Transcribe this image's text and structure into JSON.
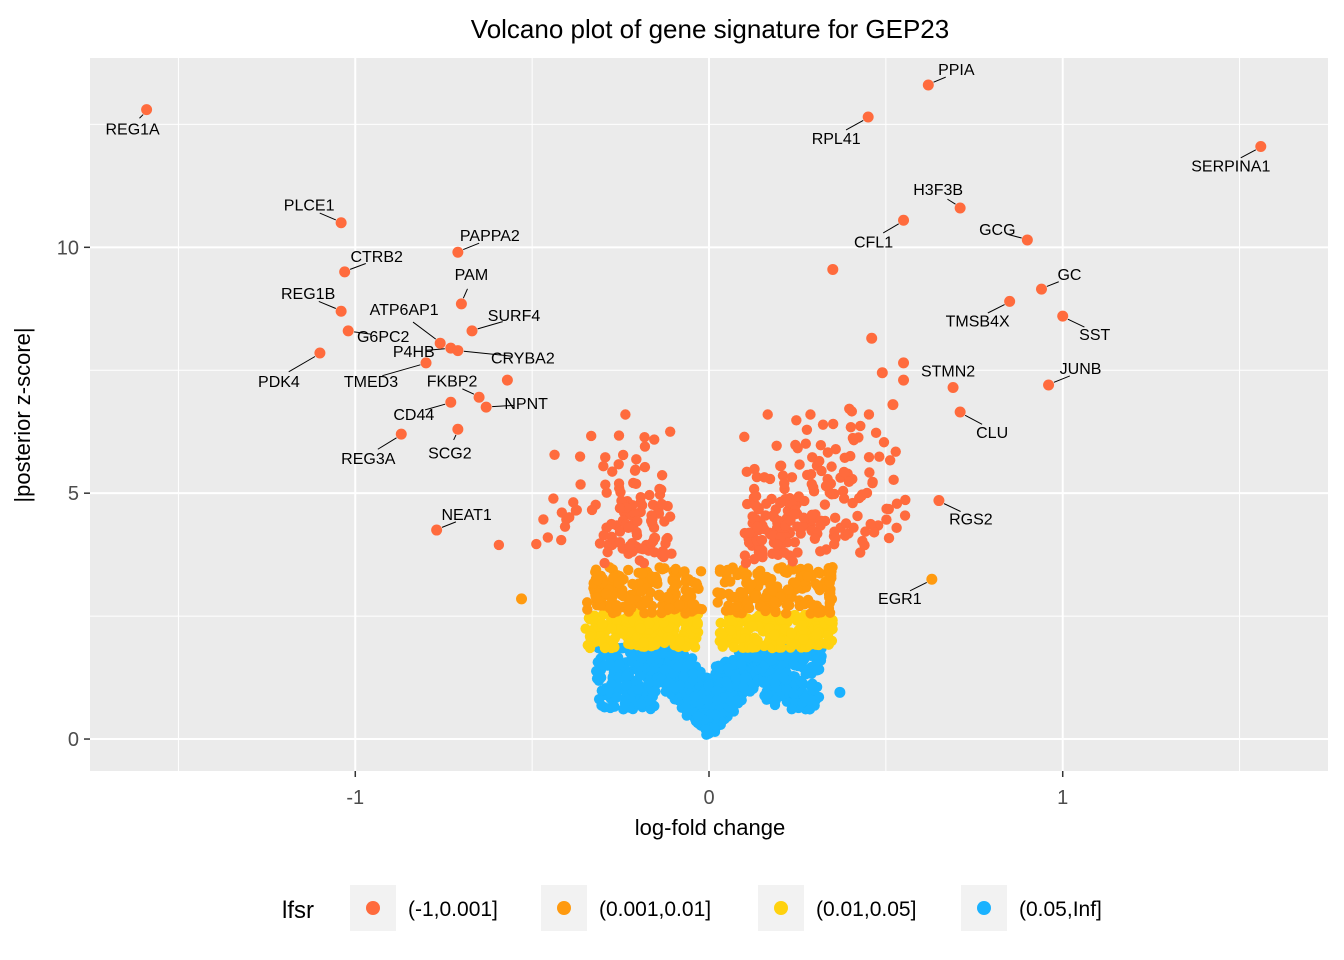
{
  "chart_data": {
    "type": "scatter",
    "title": "Volcano plot of gene signature for GEP23",
    "xlabel": "log-fold change",
    "ylabel": "|posterior z-score|",
    "xlim": [
      -1.75,
      1.75
    ],
    "ylim": [
      -0.65,
      13.85
    ],
    "x_ticks": [
      -1,
      0,
      1
    ],
    "x_tick_labels": [
      "-1",
      "0",
      "1"
    ],
    "x_minor_ticks": [
      -1.5,
      -0.5,
      0.5,
      1.5
    ],
    "y_ticks": [
      0,
      5,
      10
    ],
    "y_tick_labels": [
      "0",
      "5",
      "10"
    ],
    "y_minor_ticks": [
      2.5,
      7.5,
      12.5
    ],
    "grid": true,
    "legend": {
      "title": "lfsr",
      "position": "bottom",
      "entries": [
        {
          "label": "(-1,0.001]",
          "color": "#FF6B3D"
        },
        {
          "label": "(0.001,0.01]",
          "color": "#FF9A0F"
        },
        {
          "label": "(0.01,0.05]",
          "color": "#FFD20F"
        },
        {
          "label": "(0.05,Inf]",
          "color": "#1AB2FF"
        }
      ]
    },
    "colors": {
      "panel": "#EBEBEB",
      "grid": "#FFFFFF",
      "tick": "#333333"
    },
    "labeled_points": [
      {
        "label": "PPIA",
        "x": 0.62,
        "y": 13.3,
        "lfsr": "(-1,0.001]"
      },
      {
        "label": "REG1A",
        "x": -1.59,
        "y": 12.8,
        "lfsr": "(-1,0.001]"
      },
      {
        "label": "RPL41",
        "x": 0.45,
        "y": 12.65,
        "lfsr": "(-1,0.001]"
      },
      {
        "label": "SERPINA1",
        "x": 1.56,
        "y": 12.05,
        "lfsr": "(-1,0.001]"
      },
      {
        "label": "H3F3B",
        "x": 0.71,
        "y": 10.8,
        "lfsr": "(-1,0.001]"
      },
      {
        "label": "PLCE1",
        "x": -1.04,
        "y": 10.5,
        "lfsr": "(-1,0.001]"
      },
      {
        "label": "CFL1",
        "x": 0.55,
        "y": 10.55,
        "lfsr": "(-1,0.001]"
      },
      {
        "label": "GCG",
        "x": 0.9,
        "y": 10.15,
        "lfsr": "(-1,0.001]"
      },
      {
        "label": "PAPPA2",
        "x": -0.71,
        "y": 9.9,
        "lfsr": "(-1,0.001]"
      },
      {
        "label": "CTRB2",
        "x": -1.03,
        "y": 9.5,
        "lfsr": "(-1,0.001]"
      },
      {
        "label": "GC",
        "x": 0.94,
        "y": 9.15,
        "lfsr": "(-1,0.001]"
      },
      {
        "label": "TMSB4X",
        "x": 0.85,
        "y": 8.9,
        "lfsr": "(-1,0.001]"
      },
      {
        "label": "PAM",
        "x": -0.7,
        "y": 8.85,
        "lfsr": "(-1,0.001]"
      },
      {
        "label": "REG1B",
        "x": -1.04,
        "y": 8.7,
        "lfsr": "(-1,0.001]"
      },
      {
        "label": "SST",
        "x": 1.0,
        "y": 8.6,
        "lfsr": "(-1,0.001]"
      },
      {
        "label": "SURF4",
        "x": -0.67,
        "y": 8.3,
        "lfsr": "(-1,0.001]"
      },
      {
        "label": "ATP6AP1",
        "x": -0.76,
        "y": 8.05,
        "lfsr": "(-1,0.001]"
      },
      {
        "label": "P4HB",
        "x": -0.73,
        "y": 7.95,
        "lfsr": "(-1,0.001]"
      },
      {
        "label": "CRYBA2",
        "x": -0.71,
        "y": 7.9,
        "lfsr": "(-1,0.001]"
      },
      {
        "label": "G6PC2",
        "x": -1.02,
        "y": 8.3,
        "lfsr": "(-1,0.001]"
      },
      {
        "label": "PDK4",
        "x": -1.1,
        "y": 7.85,
        "lfsr": "(-1,0.001]"
      },
      {
        "label": "TMED3",
        "x": -0.8,
        "y": 7.65,
        "lfsr": "(-1,0.001]"
      },
      {
        "label": "STMN2",
        "x": 0.69,
        "y": 7.15,
        "lfsr": "(-1,0.001]"
      },
      {
        "label": "JUNB",
        "x": 0.96,
        "y": 7.2,
        "lfsr": "(-1,0.001]"
      },
      {
        "label": "FKBP2",
        "x": -0.65,
        "y": 6.95,
        "lfsr": "(-1,0.001]"
      },
      {
        "label": "NPNT",
        "x": -0.63,
        "y": 6.75,
        "lfsr": "(-1,0.001]"
      },
      {
        "label": "CD44",
        "x": -0.73,
        "y": 6.85,
        "lfsr": "(-1,0.001]"
      },
      {
        "label": "CLU",
        "x": 0.71,
        "y": 6.65,
        "lfsr": "(-1,0.001]"
      },
      {
        "label": "SCG2",
        "x": -0.71,
        "y": 6.3,
        "lfsr": "(-1,0.001]"
      },
      {
        "label": "REG3A",
        "x": -0.87,
        "y": 6.2,
        "lfsr": "(-1,0.001]"
      },
      {
        "label": "RGS2",
        "x": 0.65,
        "y": 4.85,
        "lfsr": "(-1,0.001]"
      },
      {
        "label": "NEAT1",
        "x": -0.77,
        "y": 4.25,
        "lfsr": "(-1,0.001]"
      },
      {
        "label": "EGR1",
        "x": 0.63,
        "y": 3.25,
        "lfsr": "(0.001,0.01]"
      }
    ],
    "unlabeled_points": [
      {
        "x": 0.35,
        "y": 9.55,
        "lfsr": "(-1,0.001]"
      },
      {
        "x": 0.46,
        "y": 8.15,
        "lfsr": "(-1,0.001]"
      },
      {
        "x": 0.55,
        "y": 7.65,
        "lfsr": "(-1,0.001]"
      },
      {
        "x": 0.55,
        "y": 7.3,
        "lfsr": "(-1,0.001]"
      },
      {
        "x": 0.49,
        "y": 7.45,
        "lfsr": "(-1,0.001]"
      },
      {
        "x": -0.57,
        "y": 7.3,
        "lfsr": "(-1,0.001]"
      },
      {
        "x": 0.52,
        "y": 6.8,
        "lfsr": "(-1,0.001]"
      },
      {
        "x": -0.53,
        "y": 2.85,
        "lfsr": "(0.001,0.01]"
      },
      {
        "x": 0.37,
        "y": 0.95,
        "lfsr": "(0.05,Inf]"
      }
    ],
    "bulk_note_for_rendering_only": false
  }
}
